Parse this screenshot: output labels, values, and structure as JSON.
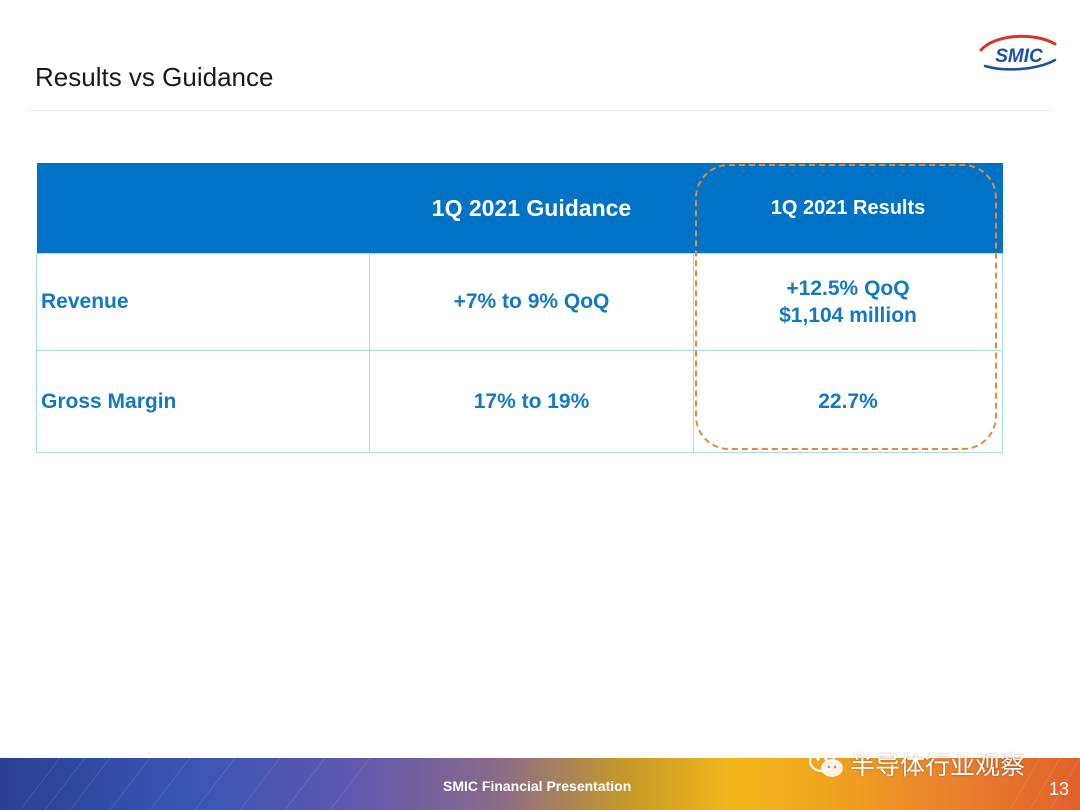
{
  "slide": {
    "title": "Results vs Guidance",
    "logo_text": "SMIC",
    "page_number": "13"
  },
  "table": {
    "headers": [
      "",
      "1Q 2021 Guidance",
      "1Q 2021 Results"
    ],
    "rows": [
      {
        "label": "Revenue",
        "guidance": "+7% to 9% QoQ",
        "results": [
          "+12.5% QoQ",
          "$1,104 million"
        ]
      },
      {
        "label": "Gross Margin",
        "guidance": "17% to 19%",
        "results": [
          "22.7%"
        ]
      }
    ]
  },
  "footer": {
    "text": "SMIC Financial Presentation",
    "watermark": "半导体行业观察"
  },
  "colors": {
    "header_blue": "#0073c7",
    "text_blue": "#1479c4",
    "highlight_orange": "#e08a3a"
  }
}
